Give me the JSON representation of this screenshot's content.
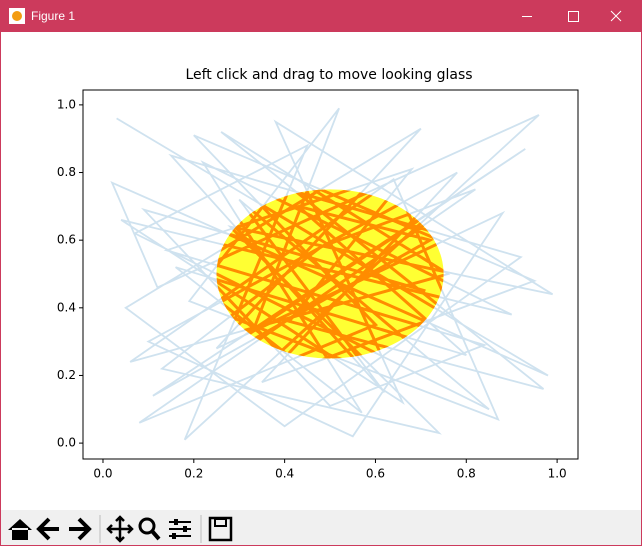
{
  "window": {
    "title": "Figure 1"
  },
  "chart_data": {
    "type": "line",
    "title": "Left click and drag to move looking glass",
    "x": [
      0.03,
      0.98,
      0.02,
      0.12,
      0.96,
      0.18,
      0.45,
      0.07,
      0.85,
      0.3,
      0.62,
      0.15,
      0.92,
      0.4,
      0.05,
      0.7,
      0.25,
      0.88,
      0.55,
      0.1,
      0.78,
      0.35,
      0.95,
      0.2,
      0.6,
      0.08,
      0.82,
      0.48,
      0.13,
      0.74,
      0.28,
      0.99,
      0.38,
      0.66,
      0.04,
      0.9,
      0.22,
      0.57,
      0.16,
      0.8,
      0.43,
      0.72,
      0.11,
      0.93,
      0.33,
      0.52,
      0.19,
      0.87,
      0.64,
      0.06,
      0.76,
      0.26,
      0.97,
      0.41,
      0.68,
      0.14,
      0.84,
      0.5,
      0.09,
      0.71
    ],
    "y": [
      0.96,
      0.2,
      0.77,
      0.46,
      0.97,
      0.01,
      0.88,
      0.62,
      0.1,
      0.72,
      0.15,
      0.85,
      0.55,
      0.05,
      0.4,
      0.93,
      0.28,
      0.68,
      0.02,
      0.3,
      0.8,
      0.18,
      0.48,
      0.91,
      0.35,
      0.06,
      0.75,
      0.58,
      0.22,
      0.03,
      0.64,
      0.44,
      0.95,
      0.12,
      0.66,
      0.38,
      0.83,
      0.09,
      0.52,
      0.26,
      0.7,
      0.6,
      0.14,
      0.87,
      0.33,
      0.99,
      0.42,
      0.07,
      0.78,
      0.24,
      0.5,
      0.92,
      0.16,
      0.36,
      0.81,
      0.57,
      0.29,
      0.11,
      0.69,
      0.45
    ],
    "color": "#cfe2ef",
    "lens_color": "#ff8c00",
    "lens_fill": "#ffff33",
    "lens": {
      "center": [
        0.5,
        0.5
      ],
      "radius": 0.25
    },
    "xlim": [
      -0.044,
      1.046
    ],
    "ylim": [
      -0.047,
      1.044
    ],
    "xticks": [
      {
        "value": 0,
        "label": "0.0"
      },
      0.2,
      0.4,
      0.6,
      0.8,
      {
        "value": 1,
        "label": "1.0"
      }
    ],
    "yticks": [
      {
        "value": 0,
        "label": "0.0"
      },
      0.2,
      0.4,
      0.6,
      0.8,
      {
        "value": 1,
        "label": "1.0"
      }
    ]
  }
}
